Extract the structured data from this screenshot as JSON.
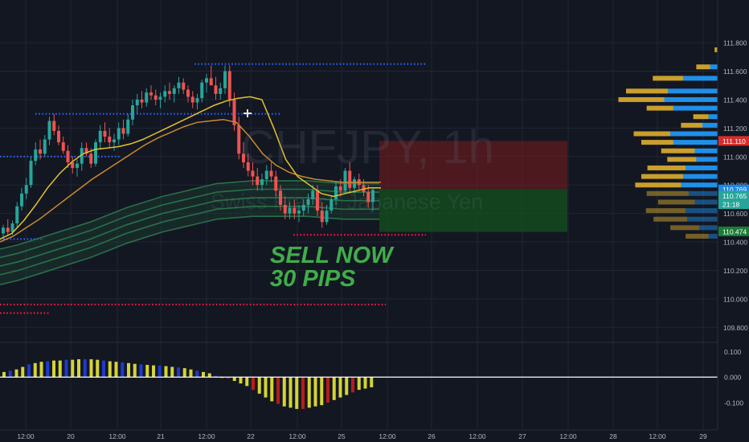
{
  "watermark": {
    "symbol": "CHFJPY, 1h",
    "description": "Swiss Franc / Japanese Yen"
  },
  "annotation": {
    "line1": "SELL NOW",
    "line2": "30 PIPS"
  },
  "colors": {
    "background": "#131722",
    "bull": "#26a69a",
    "bear": "#ef5350",
    "ma_fast": "#e6c229",
    "ma_slow": "#c98a2c",
    "ribbon": "#2e7d4f",
    "histogram_pos": "#d4d435",
    "histogram_neg": "#b71c1c",
    "profile_up": "#2196f3",
    "profile_down": "#d4a72c"
  },
  "price_axis": {
    "range": [
      109.7,
      112.1
    ],
    "ticks": [
      "111.800",
      "111.600",
      "111.400",
      "111.200",
      "111.000",
      "110.800",
      "110.600",
      "110.400",
      "110.200",
      "110.000",
      "109.800"
    ],
    "labels": [
      {
        "text": "111.110",
        "value": 111.11,
        "color": "#d32f2f"
      },
      {
        "text": "110.769",
        "value": 110.769,
        "color": "#1e88e5"
      },
      {
        "text": "110.765",
        "value": 110.725,
        "color": "#26a69a"
      },
      {
        "text": "21:18",
        "value": 110.665,
        "color": "#26a69a"
      },
      {
        "text": "110.474",
        "value": 110.474,
        "color": "#1b7c35"
      }
    ]
  },
  "oscillator_axis": {
    "range": [
      -0.16,
      0.13
    ],
    "ticks": [
      "0.100",
      "0.000",
      "-0.100"
    ]
  },
  "time_axis": {
    "ticks": [
      "12:00",
      "20",
      "12:00",
      "21",
      "12:00",
      "22",
      "12:00",
      "25",
      "12:00",
      "26",
      "12:00",
      "27",
      "12:00",
      "28",
      "12:00",
      "29"
    ]
  },
  "chart_data": {
    "type": "candlestick",
    "title": "CHFJPY, 1h",
    "subtitle": "Swiss Franc / Japanese Yen",
    "candles": [
      [
        110.46,
        110.52,
        110.42,
        110.5
      ],
      [
        110.5,
        110.56,
        110.44,
        110.47
      ],
      [
        110.47,
        110.55,
        110.45,
        110.53
      ],
      [
        110.53,
        110.68,
        110.5,
        110.65
      ],
      [
        110.65,
        110.78,
        110.62,
        110.74
      ],
      [
        110.74,
        110.85,
        110.7,
        110.8
      ],
      [
        110.8,
        111.0,
        110.78,
        110.97
      ],
      [
        110.97,
        111.1,
        110.94,
        111.05
      ],
      [
        111.05,
        111.12,
        110.98,
        111.02
      ],
      [
        111.02,
        111.15,
        111.0,
        111.12
      ],
      [
        111.12,
        111.28,
        111.08,
        111.25
      ],
      [
        111.25,
        111.3,
        111.15,
        111.18
      ],
      [
        111.18,
        111.22,
        111.08,
        111.1
      ],
      [
        111.1,
        111.14,
        111.02,
        111.04
      ],
      [
        111.04,
        111.08,
        110.92,
        110.96
      ],
      [
        110.96,
        111.0,
        110.88,
        110.92
      ],
      [
        110.92,
        110.98,
        110.86,
        110.95
      ],
      [
        110.95,
        111.1,
        110.9,
        111.06
      ],
      [
        111.06,
        111.1,
        111.0,
        111.02
      ],
      [
        111.02,
        111.06,
        110.92,
        110.95
      ],
      [
        110.95,
        111.12,
        110.93,
        111.1
      ],
      [
        111.1,
        111.22,
        111.05,
        111.18
      ],
      [
        111.18,
        111.24,
        111.1,
        111.14
      ],
      [
        111.14,
        111.2,
        111.06,
        111.1
      ],
      [
        111.1,
        111.16,
        111.04,
        111.12
      ],
      [
        111.12,
        111.24,
        111.08,
        111.2
      ],
      [
        111.2,
        111.26,
        111.12,
        111.16
      ],
      [
        111.16,
        111.3,
        111.14,
        111.26
      ],
      [
        111.26,
        111.4,
        111.22,
        111.36
      ],
      [
        111.36,
        111.44,
        111.3,
        111.4
      ],
      [
        111.4,
        111.46,
        111.34,
        111.38
      ],
      [
        111.38,
        111.48,
        111.35,
        111.45
      ],
      [
        111.45,
        111.5,
        111.4,
        111.43
      ],
      [
        111.43,
        111.47,
        111.36,
        111.4
      ],
      [
        111.4,
        111.45,
        111.34,
        111.42
      ],
      [
        111.42,
        111.5,
        111.38,
        111.46
      ],
      [
        111.46,
        111.52,
        111.4,
        111.44
      ],
      [
        111.44,
        111.5,
        111.38,
        111.48
      ],
      [
        111.48,
        111.56,
        111.44,
        111.52
      ],
      [
        111.52,
        111.55,
        111.44,
        111.47
      ],
      [
        111.47,
        111.5,
        111.38,
        111.42
      ],
      [
        111.42,
        111.46,
        111.34,
        111.38
      ],
      [
        111.38,
        111.44,
        111.33,
        111.41
      ],
      [
        111.41,
        111.54,
        111.38,
        111.52
      ],
      [
        111.52,
        111.58,
        111.45,
        111.55
      ],
      [
        111.55,
        111.64,
        111.5,
        111.5
      ],
      [
        111.5,
        111.56,
        111.4,
        111.44
      ],
      [
        111.44,
        111.52,
        111.4,
        111.48
      ],
      [
        111.48,
        111.64,
        111.44,
        111.6
      ],
      [
        111.6,
        111.64,
        111.35,
        111.4
      ],
      [
        111.4,
        111.45,
        111.18,
        111.22
      ],
      [
        111.22,
        111.28,
        110.98,
        111.02
      ],
      [
        111.02,
        111.1,
        110.92,
        110.96
      ],
      [
        110.96,
        111.02,
        110.86,
        110.9
      ],
      [
        110.9,
        110.96,
        110.8,
        110.86
      ],
      [
        110.86,
        110.92,
        110.76,
        110.8
      ],
      [
        110.8,
        110.88,
        110.76,
        110.84
      ],
      [
        110.84,
        110.94,
        110.8,
        110.9
      ],
      [
        110.9,
        110.96,
        110.82,
        110.86
      ],
      [
        110.86,
        110.9,
        110.72,
        110.76
      ],
      [
        110.76,
        110.8,
        110.62,
        110.66
      ],
      [
        110.66,
        110.72,
        110.56,
        110.6
      ],
      [
        110.6,
        110.68,
        110.56,
        110.64
      ],
      [
        110.64,
        110.7,
        110.56,
        110.6
      ],
      [
        110.6,
        110.66,
        110.54,
        110.62
      ],
      [
        110.62,
        110.7,
        110.58,
        110.66
      ],
      [
        110.66,
        110.74,
        110.6,
        110.7
      ],
      [
        110.7,
        110.8,
        110.66,
        110.76
      ],
      [
        110.76,
        110.8,
        110.58,
        110.62
      ],
      [
        110.62,
        110.68,
        110.5,
        110.54
      ],
      [
        110.54,
        110.66,
        110.52,
        110.62
      ],
      [
        110.62,
        110.72,
        110.6,
        110.7
      ],
      [
        110.7,
        110.82,
        110.66,
        110.79
      ],
      [
        110.79,
        110.84,
        110.72,
        110.76
      ],
      [
        110.76,
        110.92,
        110.74,
        110.9
      ],
      [
        110.9,
        110.96,
        110.74,
        110.78
      ],
      [
        110.78,
        110.86,
        110.74,
        110.84
      ],
      [
        110.84,
        110.88,
        110.76,
        110.8
      ],
      [
        110.8,
        110.84,
        110.72,
        110.75
      ],
      [
        110.75,
        110.8,
        110.64,
        110.68
      ],
      [
        110.68,
        110.78,
        110.62,
        110.765
      ]
    ],
    "ma_fast": [
      110.42,
      110.46,
      110.55,
      110.66,
      110.78,
      110.88,
      110.96,
      111.02,
      111.05,
      111.06,
      111.07,
      111.09,
      111.12,
      111.16,
      111.2,
      111.24,
      111.28,
      111.32,
      111.36,
      111.39,
      111.41,
      111.42,
      111.4,
      111.2,
      110.98,
      110.86,
      110.8,
      110.74,
      110.72,
      110.74,
      110.76,
      110.78,
      110.78
    ],
    "ma_slow": [
      110.4,
      110.44,
      110.5,
      110.56,
      110.63,
      110.7,
      110.77,
      110.84,
      110.9,
      110.96,
      111.02,
      111.08,
      111.13,
      111.17,
      111.21,
      111.24,
      111.25,
      111.26,
      111.24,
      111.14,
      111.02,
      110.94,
      110.89,
      110.86,
      110.84,
      110.83,
      110.82,
      110.82,
      110.82,
      110.82
    ],
    "ribbon_center": [
      110.26,
      110.29,
      110.33,
      110.37,
      110.41,
      110.45,
      110.5,
      110.55,
      110.59,
      110.63,
      110.66,
      110.69,
      110.72,
      110.73,
      110.74,
      110.74,
      110.74,
      110.74,
      110.73,
      110.72,
      110.72,
      110.72
    ],
    "supply_zone": [
      111.11,
      110.77
    ],
    "demand_zone": [
      110.77,
      110.47
    ],
    "levels": [
      {
        "price": 111.65,
        "color": "#2962ff",
        "style": "dots"
      },
      {
        "price": 111.3,
        "color": "#2962ff",
        "style": "dots"
      },
      {
        "price": 111.0,
        "color": "#2962ff",
        "style": "dots"
      },
      {
        "price": 110.42,
        "color": "#2962ff",
        "style": "dots"
      },
      {
        "price": 110.45,
        "color": "#ff1744",
        "style": "dots"
      },
      {
        "price": 109.96,
        "color": "#ff1744",
        "style": "dots"
      },
      {
        "price": 109.9,
        "color": "#ff1744",
        "style": "dots"
      }
    ],
    "oscillator": [
      0.02,
      0.025,
      0.03,
      0.04,
      0.05,
      0.055,
      0.06,
      0.062,
      0.065,
      0.065,
      0.068,
      0.068,
      0.07,
      0.07,
      0.07,
      0.068,
      0.065,
      0.062,
      0.06,
      0.058,
      0.055,
      0.052,
      0.05,
      0.048,
      0.046,
      0.045,
      0.043,
      0.04,
      0.038,
      0.035,
      0.03,
      0.025,
      0.02,
      0.015,
      0.005,
      0.0,
      -0.005,
      -0.015,
      -0.025,
      -0.035,
      -0.05,
      -0.065,
      -0.08,
      -0.095,
      -0.105,
      -0.115,
      -0.12,
      -0.125,
      -0.125,
      -0.12,
      -0.115,
      -0.11,
      -0.1,
      -0.09,
      -0.08,
      -0.07,
      -0.06,
      -0.05,
      -0.045,
      -0.04
    ],
    "volume_profile": [
      {
        "price": 111.75,
        "up": 3,
        "down": 1
      },
      {
        "price": 111.63,
        "up": 18,
        "down": 10
      },
      {
        "price": 111.55,
        "up": 40,
        "down": 45
      },
      {
        "price": 111.46,
        "up": 55,
        "down": 65
      },
      {
        "price": 111.4,
        "up": 60,
        "down": 70
      },
      {
        "price": 111.34,
        "up": 35,
        "down": 58
      },
      {
        "price": 111.28,
        "up": 20,
        "down": 12
      },
      {
        "price": 111.22,
        "up": 28,
        "down": 20
      },
      {
        "price": 111.16,
        "up": 48,
        "down": 62
      },
      {
        "price": 111.1,
        "up": 42,
        "down": 58
      },
      {
        "price": 111.04,
        "up": 44,
        "down": 30
      },
      {
        "price": 110.98,
        "up": 38,
        "down": 28
      },
      {
        "price": 110.92,
        "up": 50,
        "down": 42
      },
      {
        "price": 110.86,
        "up": 55,
        "down": 45
      },
      {
        "price": 110.8,
        "up": 60,
        "down": 48
      },
      {
        "price": 110.74,
        "up": 55,
        "down": 38
      },
      {
        "price": 110.68,
        "up": 48,
        "down": 30
      },
      {
        "price": 110.62,
        "up": 52,
        "down": 42
      },
      {
        "price": 110.56,
        "up": 44,
        "down": 40
      },
      {
        "price": 110.5,
        "up": 38,
        "down": 24
      },
      {
        "price": 110.44,
        "up": 30,
        "down": 12
      }
    ]
  }
}
